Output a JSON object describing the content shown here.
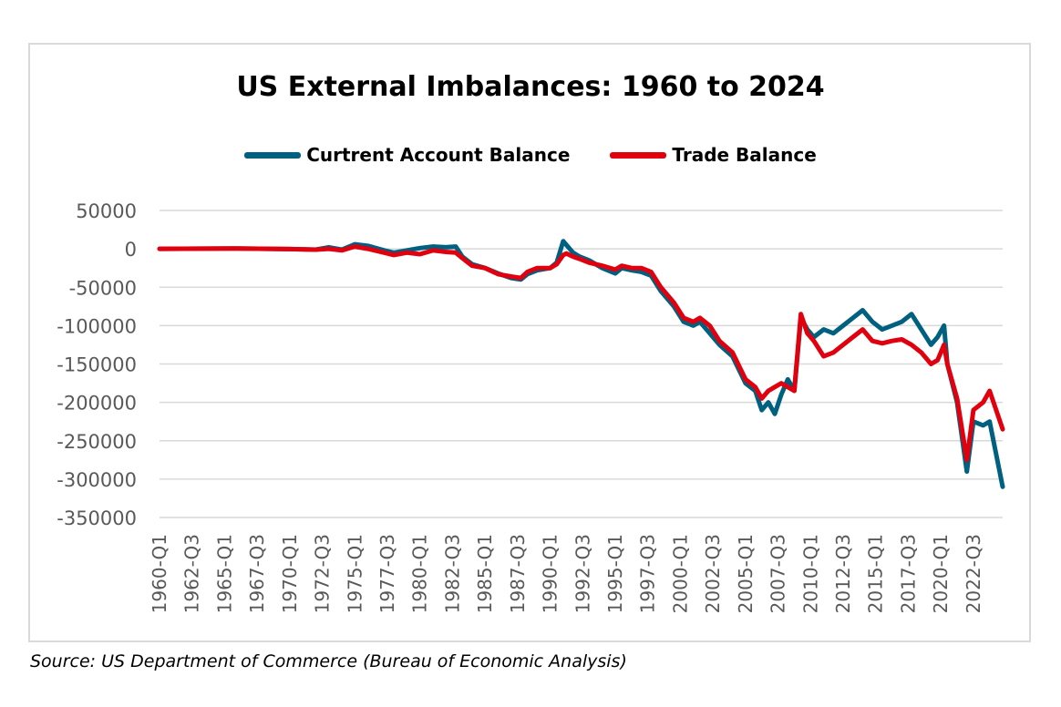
{
  "chart_data": {
    "type": "line",
    "title": "US External Imbalances: 1960 to 2024",
    "ylim": [
      -350000,
      50000
    ],
    "y_ticks": [
      50000,
      0,
      -50000,
      -100000,
      -150000,
      -200000,
      -250000,
      -300000,
      -350000
    ],
    "y_tick_labels": [
      "50000",
      "0",
      "-50000",
      "-100000",
      "-150000",
      "-200000",
      "-250000",
      "-300000",
      "-350000"
    ],
    "x_tick_labels": [
      "1960-Q1",
      "1962-Q3",
      "1965-Q1",
      "1967-Q3",
      "1970-Q1",
      "1972-Q3",
      "1975-Q1",
      "1977-Q3",
      "1980-Q1",
      "1982-Q3",
      "1985-Q1",
      "1987-Q3",
      "1990-Q1",
      "1992-Q3",
      "1995-Q1",
      "1997-Q3",
      "2000-Q1",
      "2002-Q3",
      "2005-Q1",
      "2007-Q3",
      "2010-Q1",
      "2012-Q3",
      "2015-Q1",
      "2017-Q3",
      "2020-Q1",
      "2022-Q3"
    ],
    "x_range": [
      "1960-Q1",
      "2024-Q4"
    ],
    "grid": "horizontal",
    "legend_position": "top-center",
    "series": [
      {
        "name": "Curtrent Account Balance",
        "color": "#006080",
        "points": [
          [
            "1960-Q1",
            0
          ],
          [
            "1966-Q1",
            500
          ],
          [
            "1970-Q1",
            -300
          ],
          [
            "1972-Q1",
            -1000
          ],
          [
            "1973-Q1",
            2000
          ],
          [
            "1974-Q1",
            -1000
          ],
          [
            "1975-Q1",
            6000
          ],
          [
            "1976-Q1",
            4000
          ],
          [
            "1977-Q2",
            -2000
          ],
          [
            "1978-Q1",
            -5000
          ],
          [
            "1979-Q1",
            -2000
          ],
          [
            "1980-Q1",
            1000
          ],
          [
            "1981-Q1",
            3000
          ],
          [
            "1982-Q1",
            2000
          ],
          [
            "1982-Q4",
            3000
          ],
          [
            "1983-Q2",
            -10000
          ],
          [
            "1984-Q1",
            -20000
          ],
          [
            "1985-Q1",
            -25000
          ],
          [
            "1986-Q1",
            -32000
          ],
          [
            "1987-Q1",
            -38000
          ],
          [
            "1987-Q4",
            -40000
          ],
          [
            "1988-Q2",
            -33000
          ],
          [
            "1989-Q1",
            -28000
          ],
          [
            "1990-Q1",
            -25000
          ],
          [
            "1990-Q3",
            -18000
          ],
          [
            "1991-Q1",
            10000
          ],
          [
            "1991-Q2",
            5000
          ],
          [
            "1991-Q4",
            -5000
          ],
          [
            "1992-Q2",
            -10000
          ],
          [
            "1993-Q1",
            -15000
          ],
          [
            "1994-Q1",
            -25000
          ],
          [
            "1995-Q1",
            -32000
          ],
          [
            "1995-Q3",
            -25000
          ],
          [
            "1996-Q2",
            -28000
          ],
          [
            "1997-Q1",
            -30000
          ],
          [
            "1997-Q4",
            -35000
          ],
          [
            "1998-Q3",
            -55000
          ],
          [
            "1999-Q3",
            -75000
          ],
          [
            "2000-Q2",
            -95000
          ],
          [
            "2001-Q1",
            -100000
          ],
          [
            "2001-Q3",
            -95000
          ],
          [
            "2002-Q2",
            -110000
          ],
          [
            "2003-Q1",
            -125000
          ],
          [
            "2004-Q1",
            -140000
          ],
          [
            "2005-Q1",
            -175000
          ],
          [
            "2005-Q4",
            -185000
          ],
          [
            "2006-Q2",
            -210000
          ],
          [
            "2006-Q4",
            -200000
          ],
          [
            "2007-Q2",
            -215000
          ],
          [
            "2007-Q4",
            -190000
          ],
          [
            "2008-Q2",
            -170000
          ],
          [
            "2008-Q4",
            -185000
          ],
          [
            "2009-Q2",
            -90000
          ],
          [
            "2009-Q4",
            -105000
          ],
          [
            "2010-Q2",
            -115000
          ],
          [
            "2011-Q1",
            -105000
          ],
          [
            "2011-Q4",
            -110000
          ],
          [
            "2012-Q3",
            -100000
          ],
          [
            "2013-Q2",
            -90000
          ],
          [
            "2014-Q1",
            -80000
          ],
          [
            "2014-Q4",
            -95000
          ],
          [
            "2015-Q3",
            -105000
          ],
          [
            "2016-Q2",
            -100000
          ],
          [
            "2017-Q1",
            -95000
          ],
          [
            "2017-Q4",
            -85000
          ],
          [
            "2018-Q3",
            -105000
          ],
          [
            "2019-Q2",
            -125000
          ],
          [
            "2019-Q4",
            -115000
          ],
          [
            "2020-Q2",
            -100000
          ],
          [
            "2020-Q3",
            -150000
          ],
          [
            "2021-Q2",
            -200000
          ],
          [
            "2022-Q1",
            -290000
          ],
          [
            "2022-Q3",
            -225000
          ],
          [
            "2023-Q2",
            -230000
          ],
          [
            "2023-Q4",
            -225000
          ],
          [
            "2024-Q4",
            -310000
          ]
        ]
      },
      {
        "name": "Trade Balance",
        "color": "#e0000e",
        "points": [
          [
            "1960-Q1",
            0
          ],
          [
            "1966-Q1",
            500
          ],
          [
            "1970-Q1",
            -300
          ],
          [
            "1972-Q1",
            -1000
          ],
          [
            "1973-Q1",
            0
          ],
          [
            "1974-Q1",
            -2000
          ],
          [
            "1975-Q1",
            3000
          ],
          [
            "1976-Q1",
            0
          ],
          [
            "1977-Q2",
            -5000
          ],
          [
            "1978-Q1",
            -8000
          ],
          [
            "1979-Q1",
            -5000
          ],
          [
            "1980-Q1",
            -7000
          ],
          [
            "1981-Q1",
            -2000
          ],
          [
            "1982-Q1",
            -4000
          ],
          [
            "1982-Q4",
            -5000
          ],
          [
            "1983-Q2",
            -12000
          ],
          [
            "1984-Q1",
            -22000
          ],
          [
            "1985-Q1",
            -25000
          ],
          [
            "1986-Q1",
            -33000
          ],
          [
            "1987-Q1",
            -36000
          ],
          [
            "1987-Q4",
            -38000
          ],
          [
            "1988-Q2",
            -30000
          ],
          [
            "1989-Q1",
            -25000
          ],
          [
            "1990-Q1",
            -25000
          ],
          [
            "1990-Q3",
            -20000
          ],
          [
            "1991-Q1",
            -8000
          ],
          [
            "1991-Q2",
            -6000
          ],
          [
            "1991-Q4",
            -10000
          ],
          [
            "1992-Q2",
            -13000
          ],
          [
            "1993-Q1",
            -18000
          ],
          [
            "1994-Q1",
            -22000
          ],
          [
            "1995-Q1",
            -27000
          ],
          [
            "1995-Q3",
            -22000
          ],
          [
            "1996-Q2",
            -25000
          ],
          [
            "1997-Q1",
            -25000
          ],
          [
            "1997-Q4",
            -30000
          ],
          [
            "1998-Q3",
            -50000
          ],
          [
            "1999-Q3",
            -70000
          ],
          [
            "2000-Q2",
            -90000
          ],
          [
            "2001-Q1",
            -95000
          ],
          [
            "2001-Q3",
            -90000
          ],
          [
            "2002-Q2",
            -100000
          ],
          [
            "2003-Q1",
            -120000
          ],
          [
            "2004-Q1",
            -135000
          ],
          [
            "2005-Q1",
            -170000
          ],
          [
            "2005-Q4",
            -180000
          ],
          [
            "2006-Q2",
            -195000
          ],
          [
            "2006-Q4",
            -185000
          ],
          [
            "2007-Q2",
            -180000
          ],
          [
            "2007-Q4",
            -175000
          ],
          [
            "2008-Q2",
            -180000
          ],
          [
            "2008-Q4",
            -185000
          ],
          [
            "2009-Q2",
            -85000
          ],
          [
            "2009-Q4",
            -110000
          ],
          [
            "2010-Q2",
            -120000
          ],
          [
            "2011-Q1",
            -140000
          ],
          [
            "2011-Q4",
            -135000
          ],
          [
            "2012-Q3",
            -125000
          ],
          [
            "2013-Q2",
            -115000
          ],
          [
            "2014-Q1",
            -105000
          ],
          [
            "2014-Q4",
            -120000
          ],
          [
            "2015-Q3",
            -123000
          ],
          [
            "2016-Q2",
            -120000
          ],
          [
            "2017-Q1",
            -118000
          ],
          [
            "2017-Q4",
            -125000
          ],
          [
            "2018-Q3",
            -135000
          ],
          [
            "2019-Q2",
            -150000
          ],
          [
            "2019-Q4",
            -145000
          ],
          [
            "2020-Q2",
            -125000
          ],
          [
            "2020-Q3",
            -150000
          ],
          [
            "2021-Q2",
            -195000
          ],
          [
            "2022-Q1",
            -275000
          ],
          [
            "2022-Q3",
            -210000
          ],
          [
            "2023-Q2",
            -200000
          ],
          [
            "2023-Q4",
            -185000
          ],
          [
            "2024-Q4",
            -235000
          ]
        ]
      }
    ]
  },
  "footer": {
    "source": "Source: US Department of Commerce (Bureau of Economic Analysis)"
  }
}
